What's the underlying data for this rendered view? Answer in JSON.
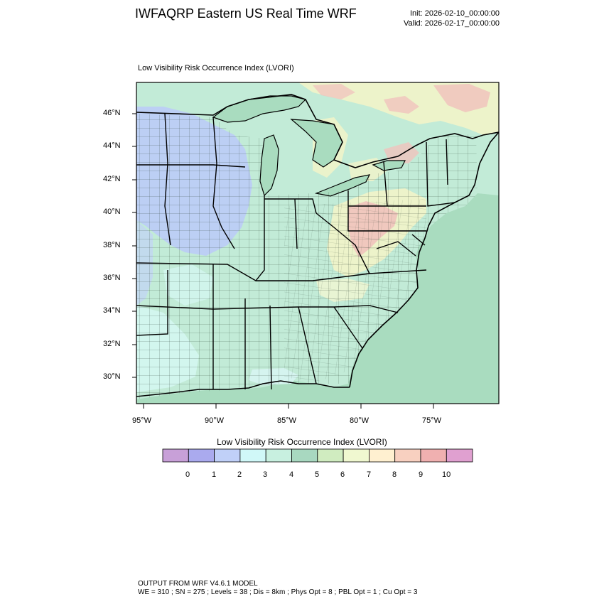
{
  "header": {
    "title": "IWFAQRP Eastern US Real Time WRF",
    "init": "Init: 2026-02-10_00:00:00",
    "valid": "Valid: 2026-02-17_00:00:00"
  },
  "plot": {
    "title": "Low Visibility Risk Occurrence Index   (LVORI)",
    "lat_labels": [
      "46°N",
      "44°N",
      "42°N",
      "40°N",
      "38°N",
      "36°N",
      "34°N",
      "32°N",
      "30°N"
    ],
    "lon_labels": [
      "95°W",
      "90°W",
      "85°W",
      "80°W",
      "75°W"
    ]
  },
  "colorbar": {
    "title": "Low Visibility Risk Occurrence Index  (LVORI)",
    "labels": [
      "0",
      "1",
      "2",
      "3",
      "4",
      "5",
      "6",
      "7",
      "8",
      "9",
      "10"
    ],
    "colors": [
      "#c8a0d8",
      "#aaaaee",
      "#c0d0f8",
      "#d0f8f8",
      "#c8f0e0",
      "#a8d8c0",
      "#d0ecc0",
      "#f0f8d0",
      "#fff0d0",
      "#f8d0c0",
      "#f0b0b0",
      "#e0a0d0"
    ]
  },
  "map": {
    "base_color": "#c2ebd7",
    "ocean_color": "#a9dcbf",
    "lake_color": "#a9dcbf",
    "colors": {
      "blue": "#bccdf5",
      "cyan": "#d2f6ee",
      "pink": "#f0c3bd",
      "yellow": "#f2f4c9"
    }
  },
  "footer": {
    "line1": "OUTPUT FROM WRF V4.6.1 MODEL",
    "line2": "WE = 310 ; SN = 275 ; Levels = 38 ; Dis = 8km ; Phys Opt = 8 ; PBL Opt = 1 ; Cu Opt = 3"
  }
}
